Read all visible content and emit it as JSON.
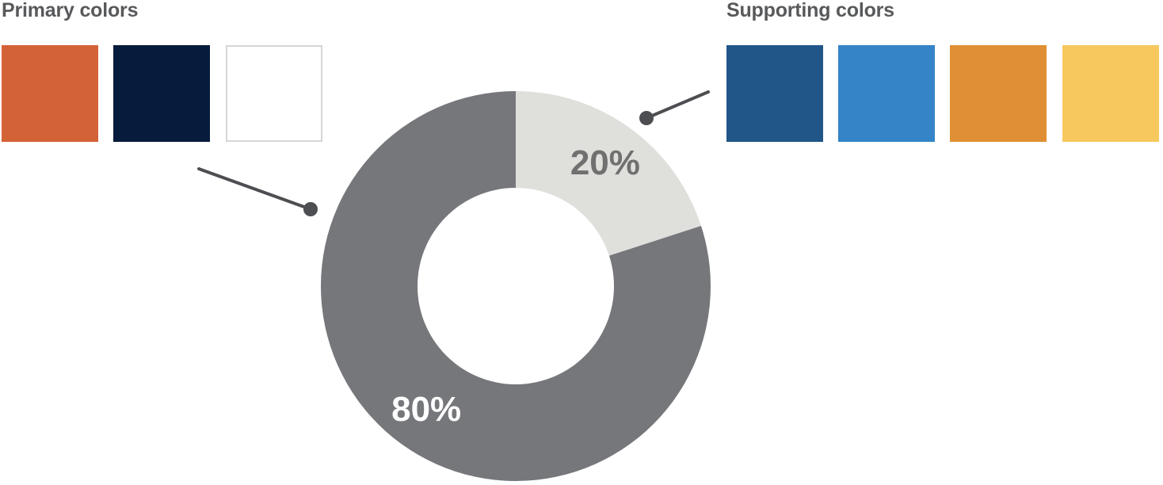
{
  "primary": {
    "title": "Primary colors",
    "swatches": [
      {
        "name": "orange",
        "color": "#d46237"
      },
      {
        "name": "navy",
        "color": "#071b3c"
      },
      {
        "name": "white",
        "color": "#ffffff"
      }
    ]
  },
  "supporting": {
    "title": "Supporting colors",
    "swatches": [
      {
        "name": "dark-blue",
        "color": "#215688"
      },
      {
        "name": "blue",
        "color": "#3484c7"
      },
      {
        "name": "orange",
        "color": "#e08f34"
      },
      {
        "name": "yellow",
        "color": "#f6c85e"
      }
    ]
  },
  "chart_data": {
    "type": "pie",
    "variant": "donut",
    "categories": [
      "Supporting colors",
      "Primary colors"
    ],
    "values": [
      20,
      80
    ],
    "data_labels": [
      "20%",
      "80%"
    ],
    "colors": [
      "#dfdfdc",
      "#76777b"
    ],
    "label_colors": [
      "#707070",
      "#ffffff"
    ],
    "title": "",
    "legend": "none"
  }
}
